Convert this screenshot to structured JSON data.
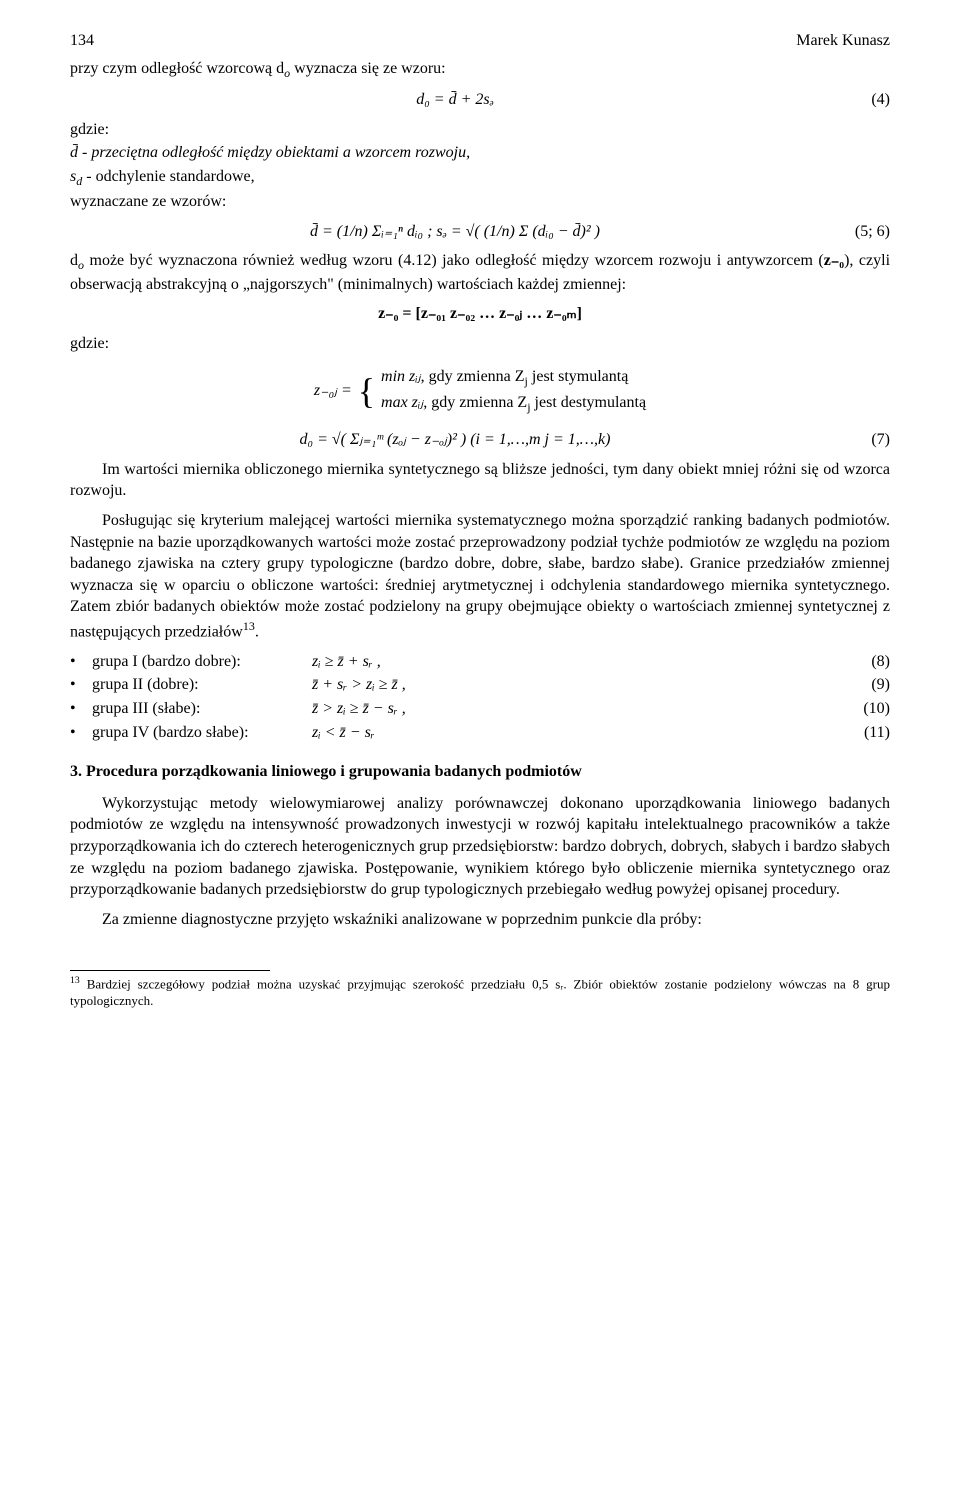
{
  "header": {
    "page_num": "134",
    "author": "Marek Kunasz"
  },
  "para": {
    "p1": "przy czym odległość wzorcową d",
    "p1_sub": "o",
    "p1_cont": " wyznacza się ze wzoru:",
    "where_gdzie": "gdzie:",
    "d_bar_def": "d̄ - przeciętna odległość między obiektami a wzorcem rozwoju,",
    "sd_def_a": "s",
    "sd_def_sub": "d",
    "sd_def_b": " - odchylenie standardowe,",
    "wyzn": "wyznaczane ze wzorów:",
    "p2a": "d",
    "p2a_sub": "o",
    "p2a_cont": " może być wyznaczona również według wzoru (4.12) jako odległość między wzorcem rozwoju i antywzorcem (",
    "p2a_bold": "z₋₀",
    "p2a_cont2": "), czyli obserwacją abstrakcyjną o „najgorszych\" (minimalnych) wartościach każdej zmiennej:",
    "case1": ", gdy zmienna Z",
    "case1_sub": "j",
    "case1_b": " jest stymulantą",
    "case2": ", gdy zmienna Z",
    "case2_sub": "j",
    "case2_b": " jest destymulantą",
    "p3": "Im wartości miernika obliczonego miernika syntetycznego są bliższe jedności, tym dany obiekt mniej różni się od wzorca rozwoju.",
    "p4": "Posługując się kryterium malejącej wartości miernika systematycznego można sporządzić ranking badanych podmiotów. Następnie na bazie uporządkowanych wartości może zostać przeprowadzony podział tychże podmiotów ze względu na poziom badanego zjawiska na cztery grupy typologiczne (bardzo dobre, dobre, słabe, bardzo słabe). Granice przedziałów zmiennej wyznacza się w oparciu o obliczone wartości: średniej arytmetycznej i odchylenia standardowego miernika syntetycznego. Zatem zbiór badanych obiektów może zostać podzielony na grupy obejmujące obiekty o wartościach zmiennej syntetycznej z następujących przedziałów",
    "p4_fn": "13",
    "p4_end": "."
  },
  "eq": {
    "e4": "d₀ = d̄ + 2sₔ",
    "n4": "(4)",
    "e56": "d̄ = (1/n) Σᵢ₌₁ⁿ dᵢ₀ ;   sₔ = √( (1/n) Σ (dᵢ₀ − d̄)² )",
    "n56": "(5; 6)",
    "zline": "z₋₀ = [z₋₀₁  z₋₀₂ … z₋₀ⱼ … z₋₀ₘ]",
    "z0j_lhs": "z₋₀ⱼ =",
    "case1_math": "min zᵢⱼ",
    "case2_math": "max zᵢⱼ",
    "e7": "d₀ = √( Σⱼ₌₁ᵐ (zₒⱼ − z₋ₒⱼ)² )   (i = 1,…,m  j = 1,…,k)",
    "n7": "(7)"
  },
  "groups": {
    "g1": {
      "label": "grupa I (bardzo dobre):",
      "expr": "zᵢ ≥ z̄ + sᵣ ,",
      "num": "(8)"
    },
    "g2": {
      "label": "grupa II (dobre):",
      "expr": "z̄ + sᵣ > zᵢ ≥ z̄ ,",
      "num": "(9)"
    },
    "g3": {
      "label": "grupa III (słabe):",
      "expr": "z̄ > zᵢ ≥ z̄ − sᵣ ,",
      "num": "(10)"
    },
    "g4": {
      "label": "grupa IV (bardzo słabe):",
      "expr": "zᵢ < z̄ − sᵣ",
      "num": "(11)"
    }
  },
  "section3": "3. Procedura porządkowania liniowego i grupowania badanych podmiotów",
  "body2": {
    "p5": "Wykorzystując metody wielowymiarowej analizy porównawczej dokonano uporządkowania liniowego badanych podmiotów ze względu na intensywność prowadzonych inwestycji w rozwój kapitału intelektualnego pracowników a także przyporządkowania ich do czterech heterogenicznych grup przedsiębiorstw: bardzo dobrych, dobrych, słabych i bardzo słabych ze względu na poziom badanego zjawiska. Postępowanie, wynikiem którego było obliczenie miernika syntetycznego oraz przyporządkowanie badanych przedsiębiorstw do grup typologicznych przebiegało według powyżej opisanej procedury.",
    "p6": "Za zmienne diagnostyczne przyjęto wskaźniki analizowane w poprzednim punkcie dla próby:"
  },
  "footnote": {
    "marker": "13",
    "text": " Bardziej szczegółowy podział można uzyskać przyjmując szerokość przedziału 0,5 sᵣ. Zbiór obiektów zostanie podzielony wówczas na 8 grup typologicznych."
  }
}
